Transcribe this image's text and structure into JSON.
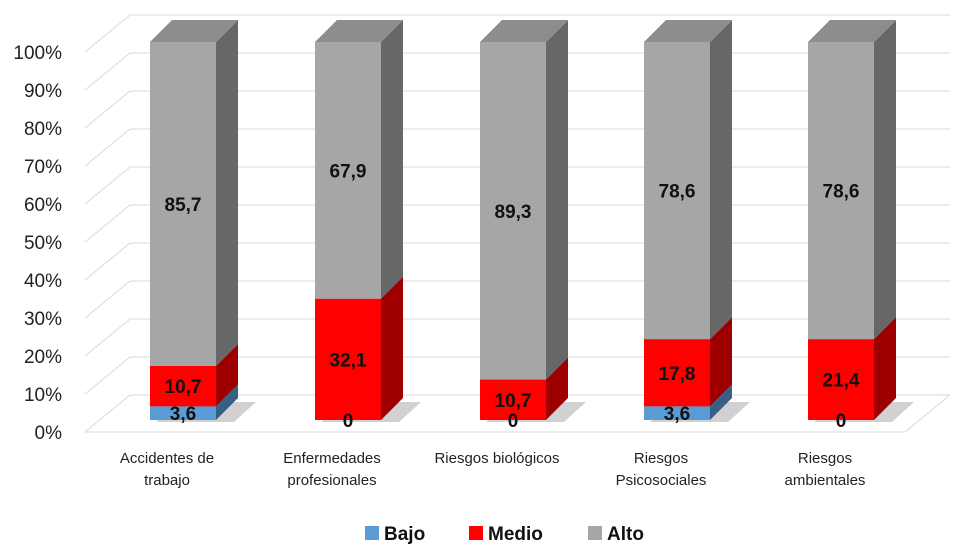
{
  "chart_data": {
    "type": "bar",
    "stacked": true,
    "style": "3d",
    "percent": true,
    "categories": [
      [
        "Accidentes de",
        "trabajo"
      ],
      [
        "Enfermedades",
        "profesionales"
      ],
      [
        "Riesgos biológicos"
      ],
      [
        "Riesgos",
        "Psicosociales"
      ],
      [
        "Riesgos",
        "ambientales"
      ]
    ],
    "series": [
      {
        "name": "Bajo",
        "color": "#5b9bd5",
        "values": [
          3.6,
          0,
          0,
          3.6,
          0
        ],
        "labels": [
          "3,6",
          "0",
          "0",
          "3,6",
          "0"
        ]
      },
      {
        "name": "Medio",
        "color": "#ff0000",
        "values": [
          10.7,
          32.1,
          10.7,
          17.8,
          21.4
        ],
        "labels": [
          "10,7",
          "32,1",
          "10,7",
          "17,8",
          "21,4"
        ]
      },
      {
        "name": "Alto",
        "color": "#a6a6a6",
        "values": [
          85.7,
          67.9,
          89.3,
          78.6,
          78.6
        ],
        "labels": [
          "85,7",
          "67,9",
          "89,3",
          "78,6",
          "78,6"
        ]
      }
    ],
    "ylim": [
      0,
      100
    ],
    "yticks": [
      "0%",
      "10%",
      "20%",
      "30%",
      "40%",
      "50%",
      "60%",
      "70%",
      "80%",
      "90%",
      "100%"
    ],
    "grid": true,
    "legend": "bottom"
  }
}
